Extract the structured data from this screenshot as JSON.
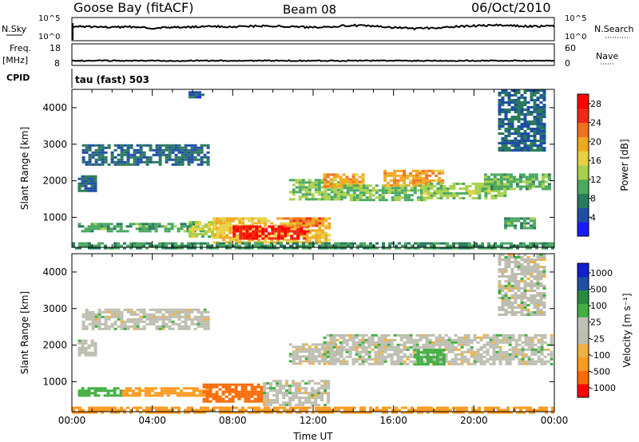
{
  "header": {
    "station": "Goose Bay (fitACF)",
    "beam": "Beam 08",
    "date": "06/Oct/2010"
  },
  "panel_labels": {
    "nsky": "N.Sky",
    "nsearch": "N.Search",
    "freq_line1": "Freq.",
    "freq_line2": "[MHz]",
    "nave": "Nave",
    "cpid": "CPID",
    "cpid_value": "tau (fast) 503"
  },
  "noise_axis": {
    "left_ticks": [
      "10^5",
      "10^0"
    ],
    "right_ticks": [
      "10^5",
      "10^0"
    ]
  },
  "freq_axis": {
    "left_ticks": [
      "18",
      "8"
    ],
    "right_ticks": [
      "60",
      "0"
    ]
  },
  "colors": {
    "frame": "#000000",
    "power_scale": [
      "#1a1aff",
      "#1e4fa3",
      "#2a7a5e",
      "#4aa860",
      "#a8d04a",
      "#e8d040",
      "#f0a820",
      "#f07020",
      "#f02818",
      "#ff0000"
    ],
    "velocity_scale": [
      "#ff0000",
      "#ff6a00",
      "#ff9a20",
      "#f0b040",
      "#bdbdb0",
      "#c0c0b8",
      "#40b040",
      "#2a8a40",
      "#2050a0",
      "#1020d0"
    ]
  },
  "chart_data": [
    {
      "type": "heatmap",
      "name": "power",
      "xlabel": "",
      "ylabel": "Slant Range [km]",
      "x_ticks": [
        "00:00",
        "04:00",
        "08:00",
        "12:00",
        "16:00",
        "20:00",
        "00:00"
      ],
      "x_range_hours": [
        0,
        24
      ],
      "y_ticks": [
        1000,
        2000,
        3000,
        4000
      ],
      "y_range_km": [
        180,
        4500
      ],
      "colorbar": {
        "label": "Power [dB]",
        "ticks": [
          4,
          8,
          12,
          16,
          20,
          24,
          28
        ],
        "range": [
          0,
          30
        ]
      },
      "regions": [
        {
          "t0": 0.3,
          "t1": 1.2,
          "r0": 1750,
          "r1": 2150,
          "value": 6
        },
        {
          "t0": 0.5,
          "t1": 6.8,
          "r0": 2450,
          "r1": 3000,
          "value": 6
        },
        {
          "t0": 0.3,
          "t1": 6.5,
          "r0": 650,
          "r1": 850,
          "value": 10
        },
        {
          "t0": 5.8,
          "t1": 7.2,
          "r0": 500,
          "r1": 900,
          "value": 14
        },
        {
          "t0": 7.0,
          "t1": 12.8,
          "r0": 320,
          "r1": 1000,
          "value": 18
        },
        {
          "t0": 8.0,
          "t1": 11.8,
          "r0": 450,
          "r1": 780,
          "value": 27
        },
        {
          "t0": 10.5,
          "t1": 12.5,
          "r0": 750,
          "r1": 1000,
          "value": 22
        },
        {
          "t0": 10.8,
          "t1": 13.5,
          "r0": 1500,
          "r1": 2050,
          "value": 12
        },
        {
          "t0": 12.5,
          "t1": 14.5,
          "r0": 1850,
          "r1": 2200,
          "value": 20
        },
        {
          "t0": 13.5,
          "t1": 17.5,
          "r0": 1450,
          "r1": 1900,
          "value": 12
        },
        {
          "t0": 15.5,
          "t1": 18.5,
          "r0": 1900,
          "r1": 2300,
          "value": 20
        },
        {
          "t0": 17.5,
          "t1": 21.5,
          "r0": 1500,
          "r1": 1950,
          "value": 13
        },
        {
          "t0": 20.5,
          "t1": 23.8,
          "r0": 1800,
          "r1": 2200,
          "value": 11
        },
        {
          "t0": 21.2,
          "t1": 23.5,
          "r0": 2800,
          "r1": 4500,
          "value": 6
        },
        {
          "t0": 21.5,
          "t1": 23.0,
          "r0": 700,
          "r1": 1000,
          "value": 10
        },
        {
          "t0": 0.0,
          "t1": 24.0,
          "r0": 180,
          "r1": 320,
          "value": 9
        },
        {
          "t0": 5.8,
          "t1": 6.5,
          "r0": 4280,
          "r1": 4450,
          "value": 5
        }
      ]
    },
    {
      "type": "heatmap",
      "name": "velocity",
      "xlabel": "Time UT",
      "ylabel": "Slant Range [km]",
      "x_ticks": [
        "00:00",
        "04:00",
        "08:00",
        "12:00",
        "16:00",
        "20:00",
        "00:00"
      ],
      "x_range_hours": [
        0,
        24
      ],
      "y_ticks": [
        1000,
        2000,
        3000,
        4000
      ],
      "y_range_km": [
        180,
        4500
      ],
      "colorbar": {
        "label": "Velocity [m s⁻¹]",
        "ticks": [
          "1000",
          "500",
          "100",
          "25",
          "-25",
          "-100",
          "-500",
          "-1000"
        ]
      },
      "regions": [
        {
          "t0": 0.3,
          "t1": 1.2,
          "r0": 1750,
          "r1": 2150,
          "value": 0
        },
        {
          "t0": 0.5,
          "t1": 6.8,
          "r0": 2450,
          "r1": 3000,
          "value": 0
        },
        {
          "t0": 0.3,
          "t1": 2.5,
          "r0": 650,
          "r1": 850,
          "value": 150
        },
        {
          "t0": 2.5,
          "t1": 6.8,
          "r0": 650,
          "r1": 850,
          "value": -200
        },
        {
          "t0": 6.5,
          "t1": 9.5,
          "r0": 450,
          "r1": 950,
          "value": -350
        },
        {
          "t0": 9.5,
          "t1": 12.8,
          "r0": 350,
          "r1": 1050,
          "value": 0
        },
        {
          "t0": 10.8,
          "t1": 13.5,
          "r0": 1500,
          "r1": 2050,
          "value": 0
        },
        {
          "t0": 12.5,
          "t1": 23.8,
          "r0": 1450,
          "r1": 2300,
          "value": 0
        },
        {
          "t0": 17.0,
          "t1": 18.5,
          "r0": 1500,
          "r1": 1900,
          "value": 200
        },
        {
          "t0": 21.2,
          "t1": 23.5,
          "r0": 2800,
          "r1": 4500,
          "value": 0
        },
        {
          "t0": 0.0,
          "t1": 24.0,
          "r0": 180,
          "r1": 320,
          "value": -100
        }
      ]
    },
    {
      "type": "line",
      "name": "n_sky",
      "x_range_hours": [
        0,
        24
      ],
      "y": [
        0.62,
        0.6,
        0.58,
        0.6,
        0.55,
        0.57,
        0.59,
        0.62,
        0.6,
        0.63,
        0.64,
        0.6,
        0.58,
        0.62,
        0.66,
        0.62,
        0.57,
        0.53,
        0.55,
        0.6,
        0.64,
        0.67,
        0.64,
        0.62,
        0.63
      ]
    },
    {
      "type": "line",
      "name": "frequency",
      "x_range_hours": [
        0,
        24
      ],
      "y": [
        10.2,
        10.2,
        10.2,
        10.2,
        10.2,
        10.2,
        10.2,
        10.2,
        10.2,
        10.2,
        10.2,
        10.2,
        10.2,
        10.2,
        10.2,
        10.2,
        10.2,
        10.2,
        10.2,
        10.2,
        10.2,
        10.2,
        10.2,
        10.2,
        10.2
      ]
    }
  ]
}
